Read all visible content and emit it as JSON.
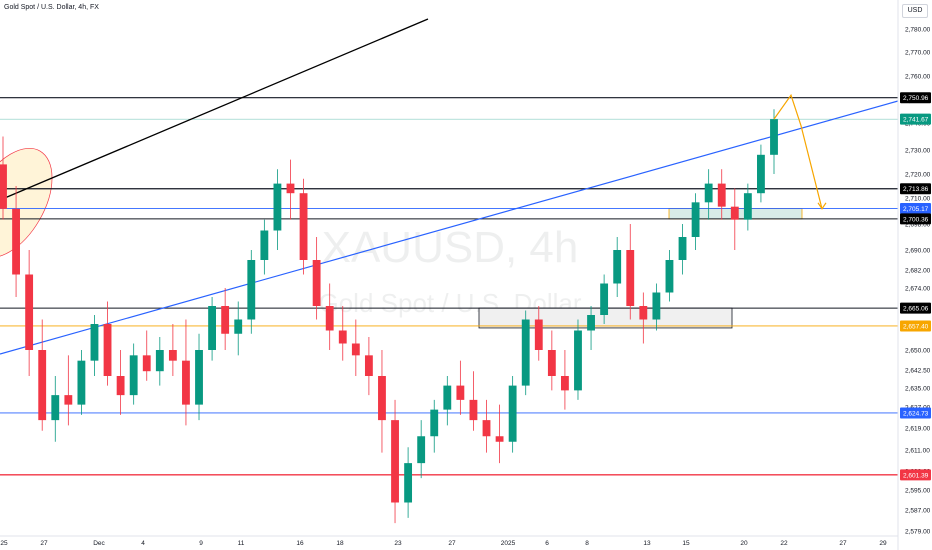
{
  "title": "Gold Spot / U.S. Dollar, 4h, FX",
  "currency": "USD",
  "watermark": {
    "symbol": "XAUUSD, 4h",
    "name": "Gold Spot / U.S. Dollar"
  },
  "colors": {
    "up": "#089981",
    "down": "#f23645",
    "trend": "#2962ff",
    "projection": "#f7a600"
  },
  "chart_data": {
    "type": "candlestick",
    "x_ticks": [
      "25",
      "27",
      "Dec",
      "4",
      "9",
      "11",
      "16",
      "18",
      "23",
      "27",
      "2025",
      "6",
      "8",
      "13",
      "15",
      "20",
      "22",
      "27",
      "29"
    ],
    "y_ticks": [
      2780,
      2770,
      2760,
      2750,
      2740,
      2730,
      2720,
      2710,
      2698,
      2690,
      2682,
      2674,
      2666,
      2658,
      2650,
      2642.5,
      2635,
      2627,
      2619,
      2611,
      2603,
      2595,
      2587,
      2579
    ],
    "y_tick_labels": [
      "2,780.00",
      "2,770.00",
      "2,760.00",
      "2,750.00",
      "2,740.00",
      "2,730.00",
      "2,720.00",
      "2,710.00",
      "2,698.00",
      "2,690.00",
      "2,682.00",
      "2,674.00",
      "2,666.00",
      "2,658.00",
      "2,650.00",
      "2,642.50",
      "2,635.00",
      "2,627.00",
      "2,619.00",
      "2,611.00",
      "2,603.00",
      "2,595.00",
      "2,587.00",
      "2,579.00"
    ],
    "price_labels": [
      {
        "value": "2,750.96",
        "role": "resistance"
      },
      {
        "value": "2,741.67",
        "role": "last"
      },
      {
        "value": "2,713.86",
        "role": "level"
      },
      {
        "value": "2,705.17",
        "role": "blue-level"
      },
      {
        "value": "2,700.36",
        "role": "level"
      },
      {
        "value": "2,665.06",
        "role": "level"
      },
      {
        "value": "2,657.40",
        "role": "orange-level"
      },
      {
        "value": "2,624.73",
        "role": "blue-level"
      },
      {
        "value": "2,601.39",
        "role": "red-level"
      }
    ],
    "horizontal_levels": [
      2750.96,
      2713.86,
      2705.17,
      2700.36,
      2665.06,
      2657.4,
      2624.73,
      2601.39
    ],
    "candles": [
      [
        2724,
        2735,
        2700,
        2705
      ],
      [
        2705,
        2715,
        2670,
        2680
      ],
      [
        2680,
        2690,
        2640,
        2650
      ],
      [
        2650,
        2660,
        2618,
        2622
      ],
      [
        2622,
        2640,
        2614,
        2632
      ],
      [
        2632,
        2648,
        2620,
        2628
      ],
      [
        2628,
        2650,
        2624,
        2646
      ],
      [
        2646,
        2662,
        2640,
        2658
      ],
      [
        2658,
        2668,
        2636,
        2640
      ],
      [
        2640,
        2650,
        2624,
        2632
      ],
      [
        2632,
        2652,
        2628,
        2648
      ],
      [
        2648,
        2656,
        2638,
        2642
      ],
      [
        2642,
        2654,
        2636,
        2650
      ],
      [
        2650,
        2658,
        2640,
        2646
      ],
      [
        2646,
        2660,
        2620,
        2628
      ],
      [
        2628,
        2655,
        2622,
        2650
      ],
      [
        2650,
        2670,
        2646,
        2666
      ],
      [
        2666,
        2674,
        2650,
        2655
      ],
      [
        2655,
        2668,
        2648,
        2660
      ],
      [
        2660,
        2690,
        2655,
        2686
      ],
      [
        2686,
        2700,
        2680,
        2696
      ],
      [
        2696,
        2722,
        2690,
        2716
      ],
      [
        2716,
        2726,
        2700,
        2712
      ],
      [
        2712,
        2718,
        2680,
        2686
      ],
      [
        2686,
        2694,
        2660,
        2666
      ],
      [
        2666,
        2676,
        2650,
        2656
      ],
      [
        2656,
        2666,
        2646,
        2652
      ],
      [
        2652,
        2660,
        2640,
        2648
      ],
      [
        2648,
        2654,
        2632,
        2640
      ],
      [
        2640,
        2650,
        2610,
        2622
      ],
      [
        2622,
        2630,
        2582,
        2590
      ],
      [
        2590,
        2612,
        2584,
        2606
      ],
      [
        2606,
        2622,
        2600,
        2616
      ],
      [
        2616,
        2630,
        2610,
        2626
      ],
      [
        2626,
        2640,
        2620,
        2636
      ],
      [
        2636,
        2646,
        2624,
        2630
      ],
      [
        2630,
        2642,
        2618,
        2622
      ],
      [
        2622,
        2630,
        2610,
        2616
      ],
      [
        2616,
        2628,
        2606,
        2614
      ],
      [
        2614,
        2640,
        2610,
        2636
      ],
      [
        2636,
        2664,
        2632,
        2660
      ],
      [
        2660,
        2666,
        2646,
        2650
      ],
      [
        2650,
        2656,
        2634,
        2640
      ],
      [
        2640,
        2650,
        2626,
        2634
      ],
      [
        2634,
        2660,
        2630,
        2656
      ],
      [
        2656,
        2666,
        2650,
        2662
      ],
      [
        2662,
        2680,
        2658,
        2676
      ],
      [
        2676,
        2694,
        2670,
        2690
      ],
      [
        2690,
        2698,
        2660,
        2666
      ],
      [
        2666,
        2672,
        2652,
        2660
      ],
      [
        2660,
        2676,
        2656,
        2672
      ],
      [
        2672,
        2690,
        2668,
        2686
      ],
      [
        2686,
        2698,
        2680,
        2694
      ],
      [
        2694,
        2712,
        2690,
        2708
      ],
      [
        2708,
        2722,
        2700,
        2716
      ],
      [
        2716,
        2722,
        2700,
        2706
      ],
      [
        2706,
        2714,
        2690,
        2700
      ],
      [
        2700,
        2716,
        2696,
        2712
      ],
      [
        2712,
        2732,
        2708,
        2728
      ],
      [
        2728,
        2746,
        2720,
        2741.67
      ]
    ],
    "projection": [
      2741.67,
      2752,
      2739,
      2705
    ]
  }
}
